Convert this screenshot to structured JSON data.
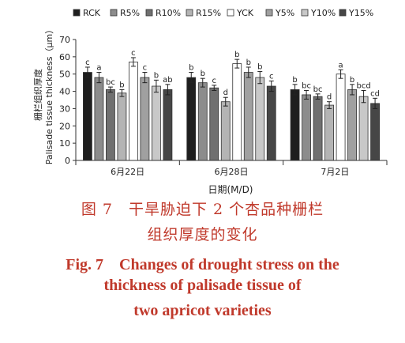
{
  "chart_data": {
    "type": "bar",
    "categories": [
      "6月22日",
      "6月28日",
      "7月2日"
    ],
    "xlabel": "日期(M/D)",
    "ylabel_cn": "栅栏组织厚度",
    "ylabel_en": "Palisade tissue thickness（μm）",
    "ylim": [
      0,
      70
    ],
    "yticks": [
      0,
      10,
      20,
      30,
      40,
      50,
      60,
      70
    ],
    "legend_position": "top",
    "series": [
      {
        "name": "RCK",
        "color": "#1e1e1e",
        "values": [
          51,
          48,
          41
        ],
        "errors": [
          3,
          3,
          3
        ],
        "letters": [
          "c",
          "b",
          "b"
        ]
      },
      {
        "name": "R5%",
        "color": "#8c8c8c",
        "values": [
          48,
          45,
          38
        ],
        "errors": [
          3,
          2.5,
          2.5
        ],
        "letters": [
          "a",
          "b",
          "bc"
        ]
      },
      {
        "name": "R10%",
        "color": "#707070",
        "values": [
          41,
          42,
          37
        ],
        "errors": [
          1.5,
          1.5,
          1.5
        ],
        "letters": [
          "bc",
          "c",
          "bc"
        ]
      },
      {
        "name": "R15%",
        "color": "#b4b4b4",
        "values": [
          39,
          34,
          32
        ],
        "errors": [
          2,
          2.5,
          2
        ],
        "letters": [
          "b",
          "d",
          "d"
        ]
      },
      {
        "name": "YCK",
        "color": "#ffffff",
        "values": [
          57,
          56,
          50
        ],
        "errors": [
          2.5,
          2.5,
          2.5
        ],
        "letters": [
          "c",
          "b",
          "a"
        ]
      },
      {
        "name": "Y5%",
        "color": "#a0a0a0",
        "values": [
          48,
          51,
          41
        ],
        "errors": [
          3,
          3,
          3
        ],
        "letters": [
          "c",
          "b",
          "b"
        ]
      },
      {
        "name": "Y10%",
        "color": "#c8c8c8",
        "values": [
          43,
          48,
          37
        ],
        "errors": [
          3.5,
          3.5,
          3.5
        ],
        "letters": [
          "b",
          "b",
          "bcd"
        ]
      },
      {
        "name": "Y15%",
        "color": "#464646",
        "values": [
          41,
          43,
          33
        ],
        "errors": [
          3,
          3,
          3
        ],
        "letters": [
          "ab",
          "c",
          "cd"
        ]
      }
    ]
  },
  "caption": {
    "cn_line1": "图 7　干旱胁迫下 2 个杏品种栅栏",
    "cn_line2": "组织厚度的变化",
    "en_line1": "Fig. 7　Changes of drought stress on the",
    "en_line2": "thickness of palisade tissue of",
    "en_line3": "two apricot varieties"
  }
}
